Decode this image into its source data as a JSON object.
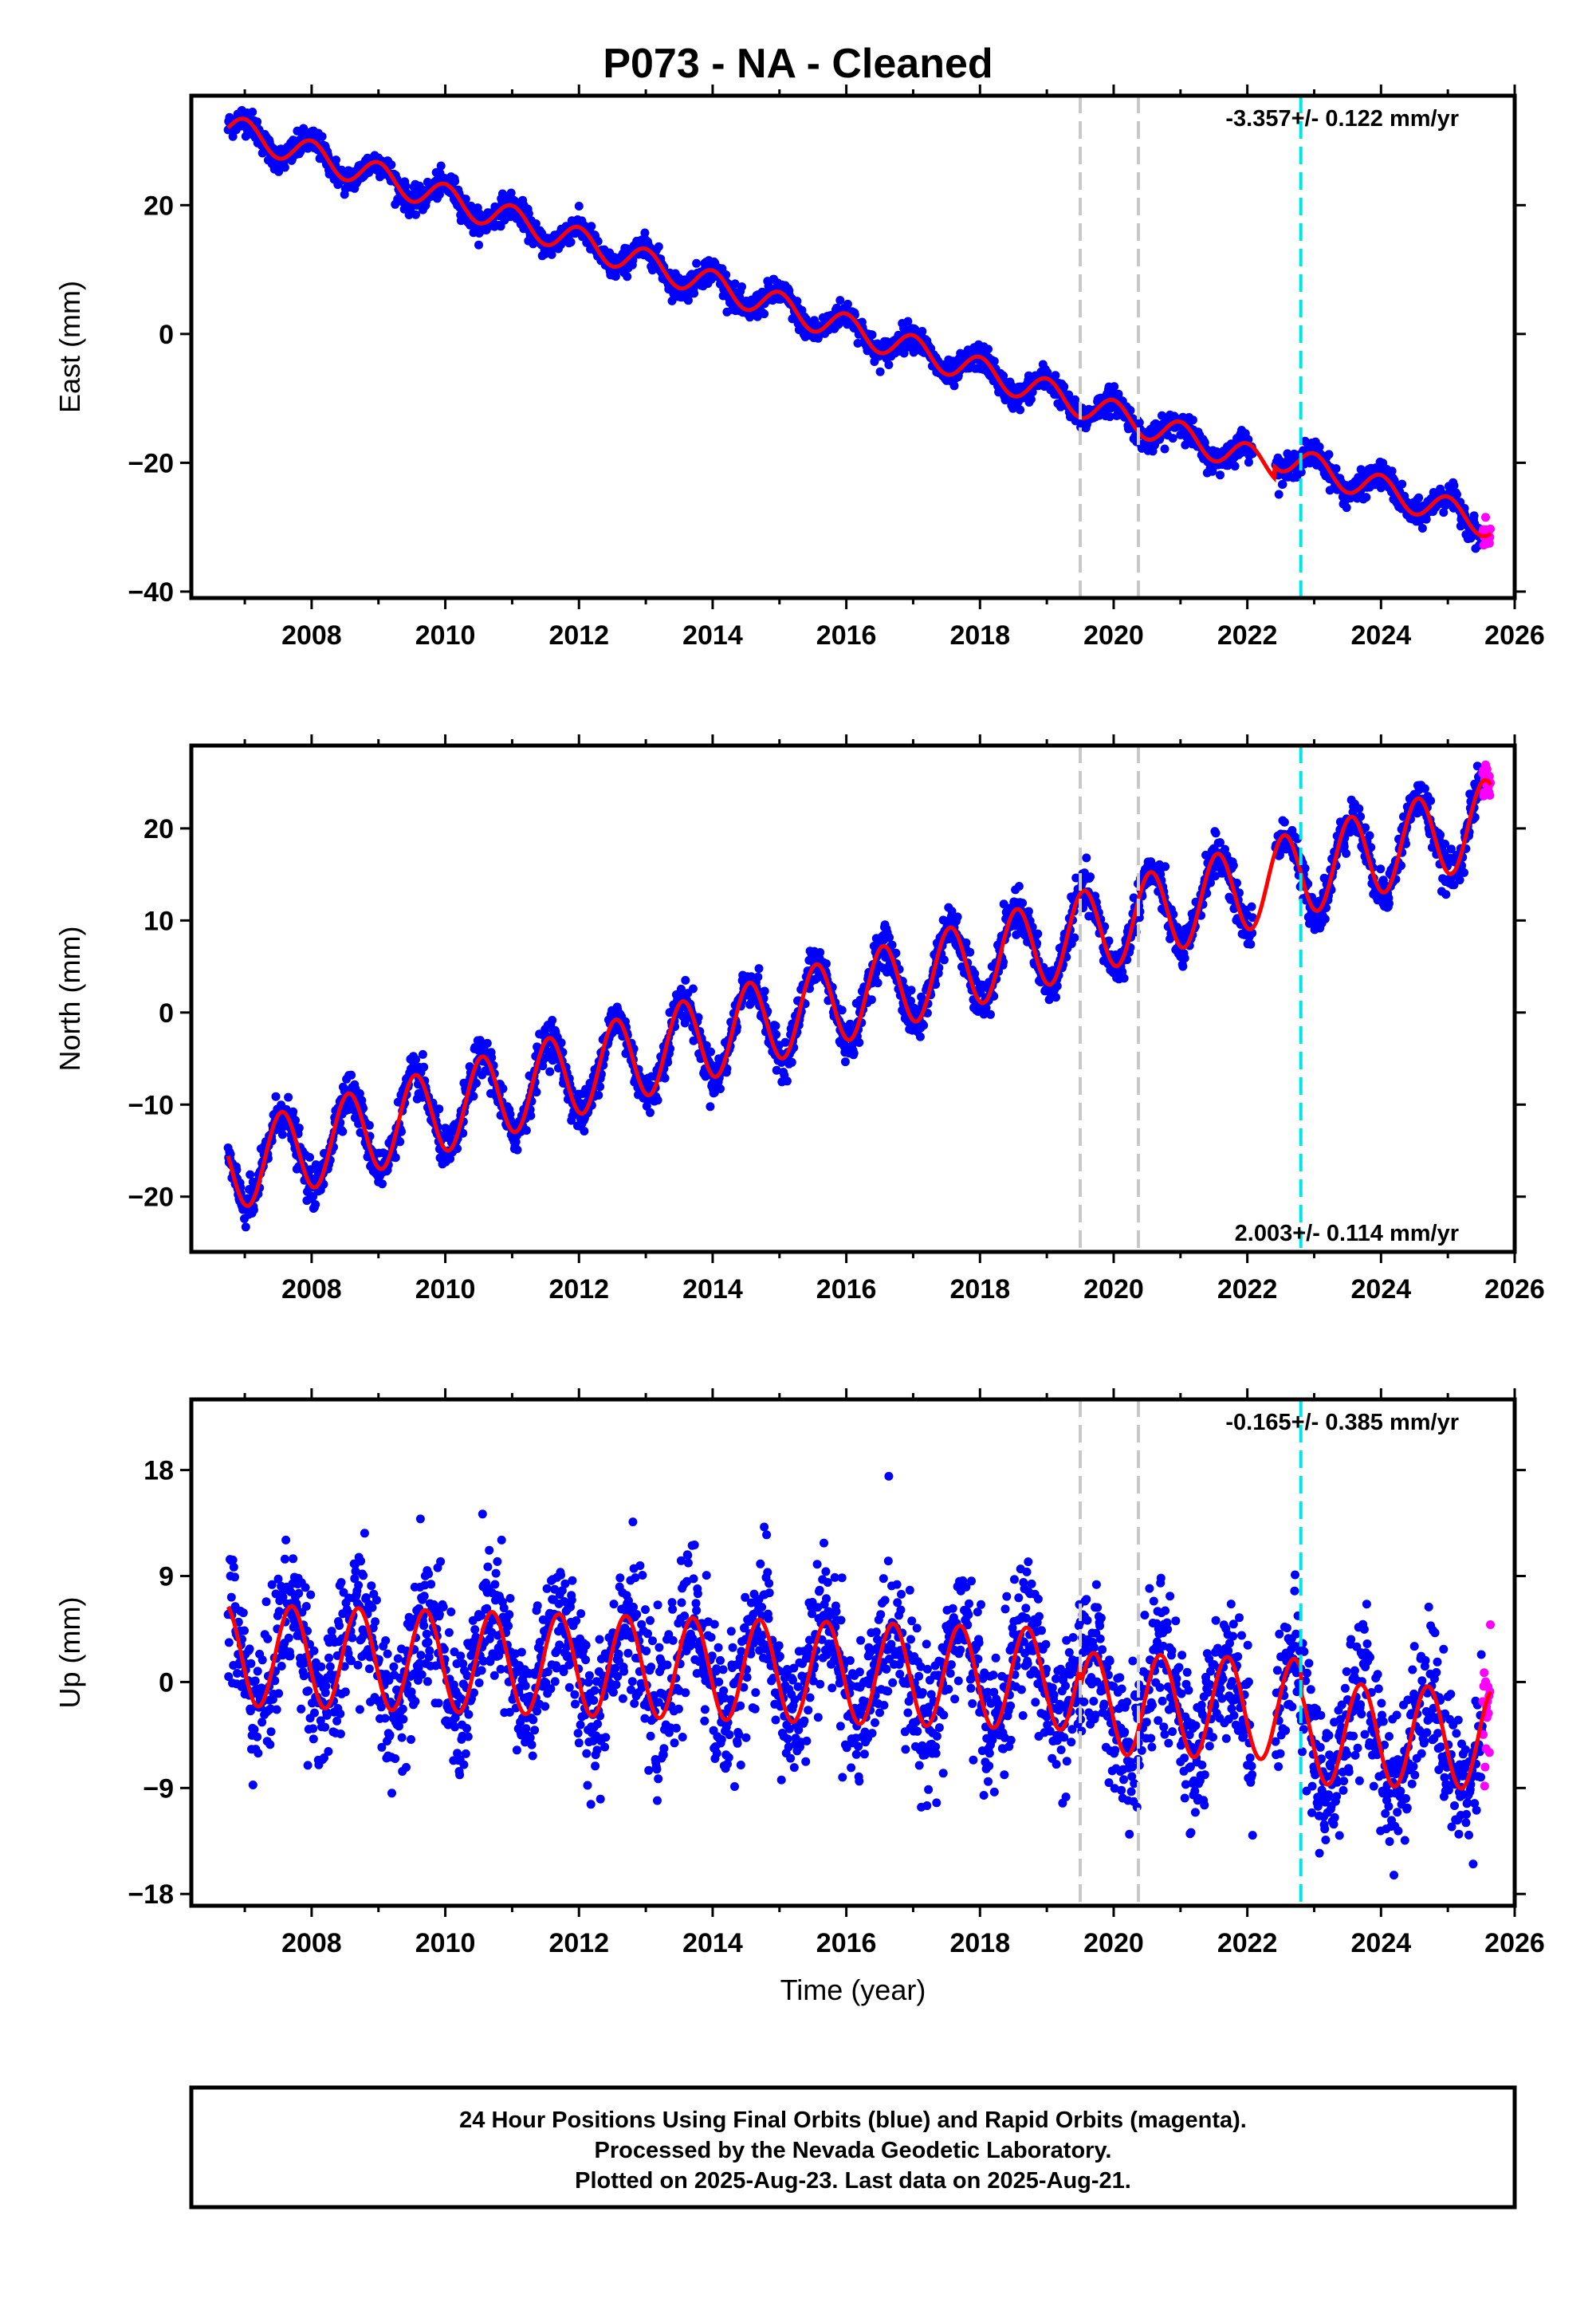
{
  "page_title": "P073  - NA - Cleaned",
  "footer": {
    "line1": "24 Hour Positions Using Final Orbits (blue) and Rapid Orbits (magenta).",
    "line2": "Processed by the Nevada Geodetic Laboratory.",
    "line3": "Plotted on 2025-Aug-23. Last data on 2025-Aug-21."
  },
  "colors": {
    "final_orbits": "#0000ff",
    "rapid_orbits": "#ff00ff",
    "model_fit": "#ff0000",
    "equipment_change_line": "#c8c8c8",
    "earthquake_line": "#00e5e5",
    "frame": "#000000"
  },
  "chart_data": [
    {
      "type": "scatter",
      "name": "east-panel",
      "title": "",
      "xlabel": "",
      "ylabel": "East (mm)",
      "xlim": [
        2006.2,
        2026.0
      ],
      "ylim": [
        -41,
        37
      ],
      "x_ticks": [
        2008,
        2010,
        2012,
        2014,
        2016,
        2018,
        2020,
        2022,
        2024,
        2026
      ],
      "y_ticks": [
        20,
        0,
        -20,
        -40
      ],
      "y_tick_labels": [
        "20",
        "0",
        "−20",
        "−40"
      ],
      "rate_label": "-3.357+/- 0.122 mm/yr",
      "rate_label_position": "top-right",
      "grid": false,
      "data_span": [
        2006.75,
        2025.64
      ],
      "rapid_orbit_span": [
        2025.52,
        2025.64
      ],
      "data_gap": [
        2022.08,
        2022.42
      ],
      "model": {
        "intercept_at_2006_75": 32.0,
        "rate_mm_per_yr": -3.357,
        "annual_amplitude": 2.2,
        "annual_peak_phase_yr": 0.0,
        "offsets": [
          {
            "x": 2022.4,
            "value": 1.8
          }
        ]
      },
      "scatter_noise_mm": 1.0,
      "reference_lines": [
        {
          "x": 2019.5,
          "kind": "equipment"
        },
        {
          "x": 2020.37,
          "kind": "equipment"
        },
        {
          "x": 2022.8,
          "kind": "earthquake"
        }
      ]
    },
    {
      "type": "scatter",
      "name": "north-panel",
      "title": "",
      "xlabel": "",
      "ylabel": "North (mm)",
      "xlim": [
        2006.2,
        2026.0
      ],
      "ylim": [
        -26,
        29
      ],
      "x_ticks": [
        2008,
        2010,
        2012,
        2014,
        2016,
        2018,
        2020,
        2022,
        2024,
        2026
      ],
      "y_ticks": [
        20,
        10,
        0,
        -10,
        -20
      ],
      "y_tick_labels": [
        "20",
        "10",
        "0",
        "−10",
        "−20"
      ],
      "rate_label": "2.003+/- 0.114 mm/yr",
      "rate_label_position": "bottom-right",
      "grid": false,
      "data_span": [
        2006.75,
        2025.64
      ],
      "rapid_orbit_span": [
        2025.52,
        2025.64
      ],
      "data_gap": [
        2022.08,
        2022.42
      ],
      "model": {
        "intercept_at_2006_75": -17.0,
        "rate_mm_per_yr": 2.003,
        "annual_amplitude": 4.6,
        "annual_peak_phase_yr": 0.55,
        "offsets": []
      },
      "scatter_noise_mm": 1.1,
      "reference_lines": [
        {
          "x": 2019.5,
          "kind": "equipment"
        },
        {
          "x": 2020.37,
          "kind": "equipment"
        },
        {
          "x": 2022.8,
          "kind": "earthquake"
        }
      ]
    },
    {
      "type": "scatter",
      "name": "up-panel",
      "title": "",
      "xlabel": "Time (year)",
      "ylabel": "Up (mm)",
      "xlim": [
        2006.2,
        2026.0
      ],
      "ylim": [
        -19,
        24
      ],
      "x_ticks": [
        2008,
        2010,
        2012,
        2014,
        2016,
        2018,
        2020,
        2022,
        2024,
        2026
      ],
      "y_ticks": [
        18,
        9,
        0,
        -9,
        -18
      ],
      "y_tick_labels": [
        "18",
        "9",
        "0",
        "−9",
        "−18"
      ],
      "rate_label": "-0.165+/- 0.385 mm/yr",
      "rate_label_position": "top-right",
      "grid": false,
      "data_span": [
        2006.75,
        2025.64
      ],
      "rapid_orbit_span": [
        2025.52,
        2025.64
      ],
      "data_gap": [
        2022.08,
        2022.42
      ],
      "model": {
        "intercept_at_2006_75": 2.3,
        "rate_mm_per_yr": -0.165,
        "annual_amplitude": 4.3,
        "annual_peak_phase_yr": 0.7,
        "offsets": [
          {
            "x": 2019.5,
            "value": -2.0
          },
          {
            "x": 2022.8,
            "value": -2.0
          }
        ]
      },
      "scatter_noise_mm": 3.0,
      "reference_lines": [
        {
          "x": 2019.5,
          "kind": "equipment"
        },
        {
          "x": 2020.37,
          "kind": "equipment"
        },
        {
          "x": 2022.8,
          "kind": "earthquake"
        }
      ]
    }
  ]
}
